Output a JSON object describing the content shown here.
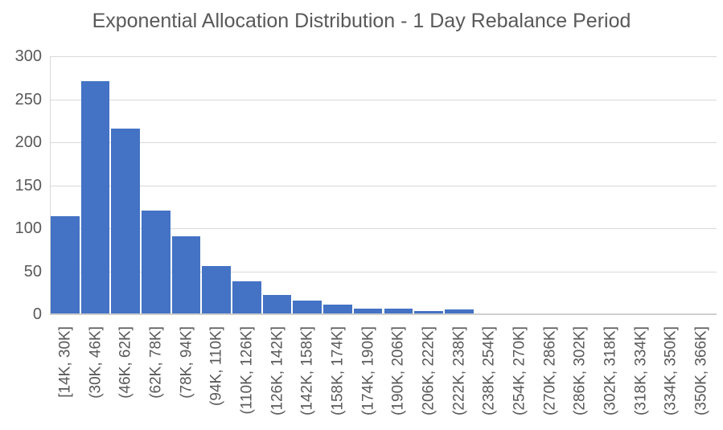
{
  "page": {
    "background": "#FFFFFF"
  },
  "chart_data": {
    "type": "bar",
    "subtype": "histogram",
    "title": "Exponential Allocation Distribution - 1 Day Rebalance Period",
    "categories": [
      "[14K, 30K]",
      "(30K, 46K]",
      "(46K, 62K]",
      "(62K, 78K]",
      "(78K, 94K]",
      "(94K, 110K]",
      "(110K, 126K]",
      "(126K, 142K]",
      "(142K, 158K]",
      "(158K, 174K]",
      "(174K, 190K]",
      "(190K, 206K]",
      "(206K, 222K]",
      "(222K, 238K]",
      "(238K, 254K]",
      "(254K, 270K]",
      "(270K, 286K]",
      "(286K, 302K]",
      "(302K, 318K]",
      "(318K, 334K]",
      "(334K, 350K]",
      "(350K, 366K]"
    ],
    "values": [
      114,
      271,
      216,
      121,
      91,
      56,
      38,
      22,
      16,
      11,
      7,
      7,
      4,
      6,
      0,
      1,
      0,
      0,
      0,
      1,
      0,
      0
    ],
    "xlabel": "",
    "ylabel": "",
    "ylim": [
      0,
      300
    ],
    "yticks": [
      0,
      50,
      100,
      150,
      200,
      250,
      300
    ],
    "grid": true,
    "legend": false,
    "bar_color": "#4472C4",
    "gridline_color": "#D9D9D9",
    "axis_line_color": "#CFCFCF",
    "label_color": "#595959",
    "title_color": "#595959"
  }
}
